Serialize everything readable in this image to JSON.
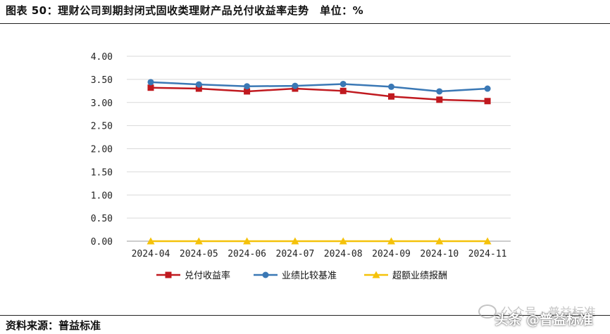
{
  "header": {
    "title": "图表 50：理财公司到期封闭式固收类理财产品兑付收益率走势　单位：%"
  },
  "footer": {
    "source": "资料来源：普益标准",
    "watermark": "公众号 · 普益标准",
    "toutiao": "头条 @普益标准"
  },
  "colors": {
    "series1": "#c0191f",
    "series2": "#3a78b5",
    "series3": "#f5c20a",
    "grid": "#d9d9d9",
    "axis": "#999999"
  },
  "chart_data": {
    "type": "line",
    "categories": [
      "2024-04",
      "2024-05",
      "2024-06",
      "2024-07",
      "2024-08",
      "2024-09",
      "2024-10",
      "2024-11"
    ],
    "series": [
      {
        "name": "兑付收益率",
        "marker": "square",
        "values": [
          3.32,
          3.3,
          3.24,
          3.3,
          3.25,
          3.13,
          3.06,
          3.03
        ]
      },
      {
        "name": "业绩比较基准",
        "marker": "circle",
        "values": [
          3.44,
          3.39,
          3.35,
          3.36,
          3.4,
          3.34,
          3.24,
          3.3
        ]
      },
      {
        "name": "超额业绩报酬",
        "marker": "triangle",
        "values": [
          0.0,
          0.0,
          0.0,
          0.0,
          0.0,
          0.0,
          0.0,
          0.0
        ]
      }
    ],
    "yticks": [
      "0.00",
      "0.50",
      "1.00",
      "1.50",
      "2.00",
      "2.50",
      "3.00",
      "3.50",
      "4.00"
    ],
    "ylim": [
      0,
      4
    ],
    "grid": true,
    "legend_position": "bottom"
  }
}
